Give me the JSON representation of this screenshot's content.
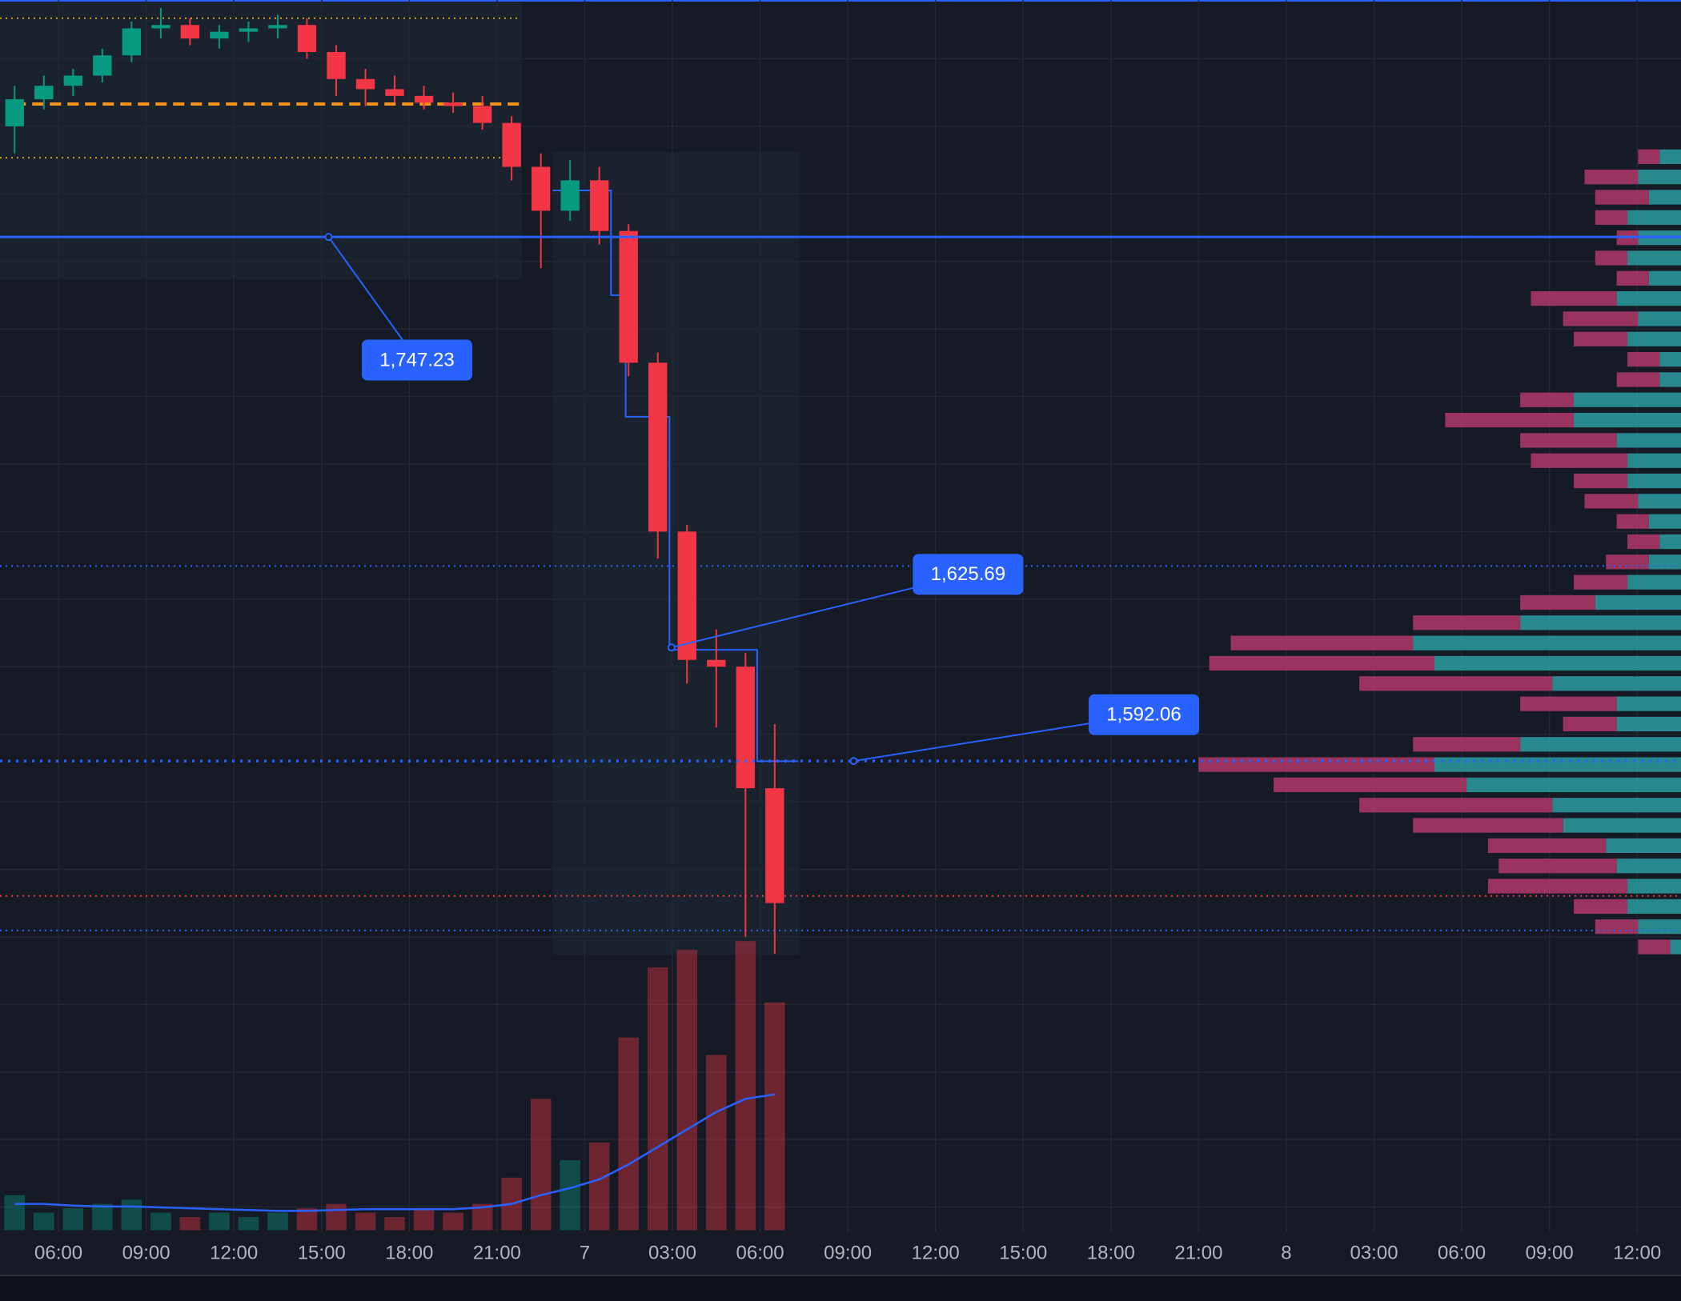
{
  "chart_data": {
    "type": "candlestick",
    "x": [
      4.5,
      5.5,
      6.5,
      7.5,
      8.5,
      9.5,
      10.5,
      11.5,
      12.5,
      13.5,
      14.5,
      15.5,
      16.5,
      17.5,
      18.5,
      19.5,
      20.5,
      21.5,
      22.5,
      23.5,
      24.5,
      25.5,
      26.5,
      27.5,
      28.5,
      29.5,
      30.5
    ],
    "open": [
      1780,
      1788,
      1792,
      1795,
      1801,
      1809,
      1810,
      1806,
      1808,
      1809,
      1810,
      1802,
      1794,
      1791,
      1789,
      1787,
      1786,
      1781,
      1768,
      1755,
      1764,
      1749,
      1710,
      1660,
      1622,
      1620,
      1584
    ],
    "high": [
      1792,
      1795,
      1797,
      1803,
      1811,
      1815,
      1812,
      1810,
      1811,
      1813,
      1812,
      1804,
      1797,
      1795,
      1792,
      1790,
      1789,
      1783,
      1772,
      1770,
      1768,
      1751,
      1713,
      1662,
      1631,
      1624,
      1603
    ],
    "low": [
      1772,
      1785,
      1789,
      1793,
      1799,
      1806,
      1804,
      1803,
      1805,
      1806,
      1800,
      1789,
      1786,
      1787,
      1785,
      1784,
      1779,
      1764,
      1738,
      1752,
      1745,
      1706,
      1652,
      1615,
      1602,
      1540,
      1535
    ],
    "close": [
      1788,
      1792,
      1795,
      1801,
      1809,
      1810,
      1806,
      1808,
      1809,
      1810,
      1802,
      1794,
      1791,
      1789,
      1787,
      1786,
      1781,
      1768,
      1755,
      1764,
      1749,
      1710,
      1660,
      1622,
      1620,
      1584,
      1550
    ],
    "up_color": "#089981",
    "down_color": "#f23645",
    "volume": [
      40,
      20,
      25,
      30,
      35,
      20,
      15,
      20,
      15,
      20,
      25,
      30,
      20,
      15,
      25,
      20,
      30,
      60,
      150,
      80,
      100,
      220,
      300,
      320,
      200,
      330,
      260
    ],
    "volume_ma": [
      30,
      30,
      28,
      27,
      27,
      26,
      25,
      24,
      23,
      22,
      22,
      23,
      24,
      24,
      24,
      24,
      26,
      30,
      40,
      48,
      58,
      75,
      95,
      115,
      135,
      150,
      155
    ],
    "y2lim": [
      0,
      400
    ],
    "steps": {
      "x": [
        22.9,
        24.9,
        25.4,
        26.9,
        29.9,
        31.3
      ],
      "values": [
        1761,
        1730,
        1694,
        1625,
        1592,
        1592
      ]
    },
    "xlim": [
      4,
      61.5
    ],
    "ylim": [
      1452.5,
      1817.4
    ],
    "ygrid": [
      1460,
      1480,
      1500,
      1520,
      1540,
      1560,
      1580,
      1600,
      1620,
      1640,
      1660,
      1680,
      1700,
      1720,
      1740,
      1760,
      1780,
      1800
    ],
    "xticks": [
      {
        "value": 6,
        "label": "06:00"
      },
      {
        "value": 9,
        "label": "09:00"
      },
      {
        "value": 12,
        "label": "12:00"
      },
      {
        "value": 15,
        "label": "15:00"
      },
      {
        "value": 18,
        "label": "18:00"
      },
      {
        "value": 21,
        "label": "21:00"
      },
      {
        "value": 24,
        "label": "7"
      },
      {
        "value": 27,
        "label": "03:00"
      },
      {
        "value": 30,
        "label": "06:00"
      },
      {
        "value": 33,
        "label": "09:00"
      },
      {
        "value": 36,
        "label": "12:00"
      },
      {
        "value": 39,
        "label": "15:00"
      },
      {
        "value": 42,
        "label": "18:00"
      },
      {
        "value": 45,
        "label": "21:00"
      },
      {
        "value": 48,
        "label": "8"
      },
      {
        "value": 51,
        "label": "03:00"
      },
      {
        "value": 54,
        "label": "06:00"
      },
      {
        "value": 57,
        "label": "09:00"
      },
      {
        "value": 60,
        "label": "12:00"
      }
    ],
    "grid": true,
    "levels": [
      {
        "value": 1812.0,
        "color": "#c9a227",
        "style": "dotted",
        "from": 4,
        "to": 21.8
      },
      {
        "value": 1786.6,
        "color": "#f7931a",
        "style": "dashed",
        "from": 4.5,
        "to": 21.8
      },
      {
        "value": 1770.7,
        "color": "#c9a227",
        "style": "dotted",
        "from": 4,
        "to": 21.8
      },
      {
        "value": 1649.8,
        "color": "#2962ff",
        "style": "dotted",
        "from": 4,
        "to": 61.5
      },
      {
        "value": 1552.1,
        "color": "#f23645",
        "style": "dotted",
        "from": 4,
        "to": 61.5
      },
      {
        "value": 1541.9,
        "color": "#2962ff",
        "style": "dotted",
        "from": 4,
        "to": 61.5
      }
    ],
    "annotations": [
      {
        "value": 1747.23,
        "label": "1,747.23",
        "at": 15.24,
        "style": "solid"
      },
      {
        "value": 1625.69,
        "label": "1,625.69",
        "at": 26.97
      },
      {
        "value": 1592.06,
        "label": "1,592.06",
        "at": 33.2,
        "style": "dotted"
      }
    ],
    "annotation_color": "#2962ff",
    "profile": {
      "prices": [
        1771,
        1765,
        1759,
        1753,
        1747,
        1741,
        1735,
        1729,
        1723,
        1717,
        1711,
        1705,
        1699,
        1693,
        1687,
        1681,
        1675,
        1669,
        1663,
        1657,
        1651,
        1645,
        1639,
        1633,
        1627,
        1621,
        1615,
        1609,
        1603,
        1597,
        1591,
        1585,
        1579,
        1573,
        1567,
        1561,
        1555,
        1549,
        1543,
        1537
      ],
      "buy": [
        20,
        40,
        30,
        50,
        40,
        50,
        30,
        60,
        40,
        50,
        20,
        20,
        100,
        100,
        60,
        50,
        50,
        40,
        30,
        20,
        30,
        50,
        80,
        150,
        250,
        230,
        120,
        60,
        60,
        150,
        230,
        200,
        120,
        110,
        70,
        60,
        50,
        50,
        40,
        10
      ],
      "sell": [
        20,
        50,
        50,
        30,
        20,
        30,
        30,
        80,
        70,
        50,
        30,
        40,
        50,
        120,
        90,
        90,
        50,
        50,
        30,
        30,
        40,
        50,
        70,
        100,
        170,
        210,
        180,
        90,
        50,
        100,
        220,
        180,
        180,
        140,
        110,
        110,
        130,
        50,
        40,
        30
      ],
      "xlim": [
        0,
        450
      ],
      "buy_color": "#2a9ea0",
      "sell_color": "#b23a6a"
    }
  }
}
